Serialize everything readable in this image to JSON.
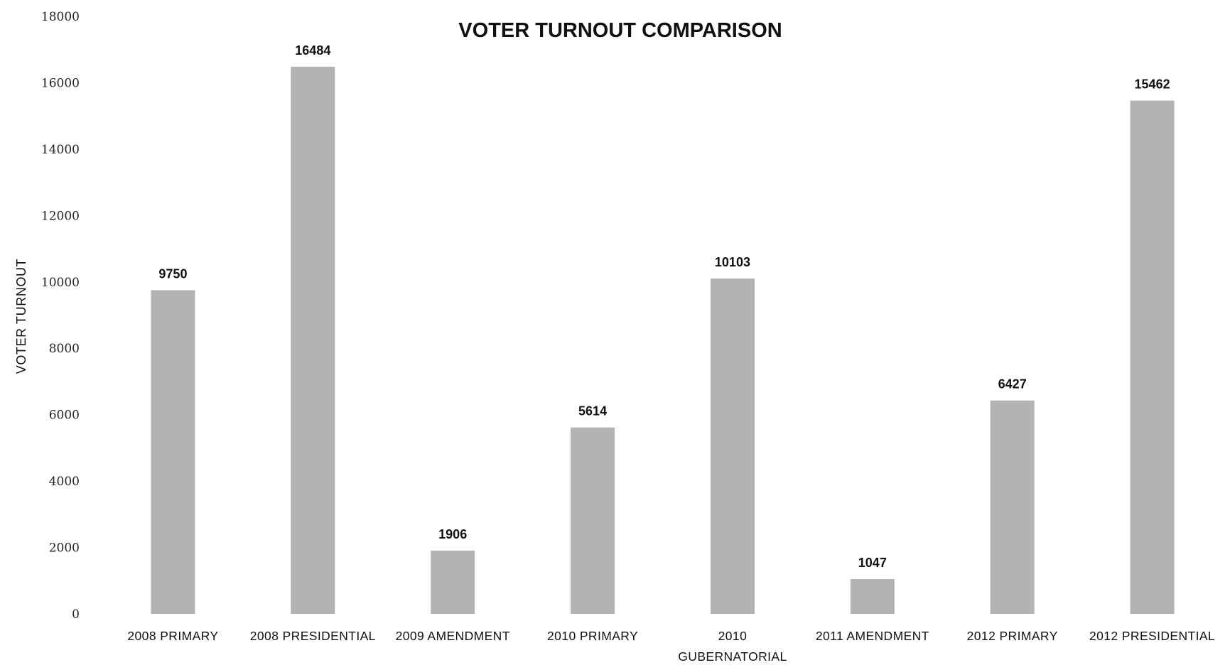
{
  "chart_data": {
    "type": "bar",
    "title": "VOTER TURNOUT COMPARISON",
    "xlabel": "",
    "ylabel": "VOTER TURNOUT",
    "ylim": [
      0,
      18000
    ],
    "yticks": [
      "0",
      "2000",
      "4000",
      "6000",
      "8000",
      "10000",
      "12000",
      "14000",
      "16000",
      "18000"
    ],
    "categories": [
      "2008 PRIMARY",
      "2008 PRESIDENTIAL",
      "2009 AMENDMENT",
      "2010 PRIMARY",
      "2010 GUBERNATORIAL",
      "2011 AMENDMENT",
      "2012 PRIMARY",
      "2012 PRESIDENTIAL"
    ],
    "values": [
      9750,
      16484,
      1906,
      5614,
      10103,
      1047,
      6427,
      15462
    ],
    "data_labels": [
      "9750",
      "16484",
      "1906",
      "5614",
      "10103",
      "1047",
      "6427",
      "15462"
    ],
    "grid": false,
    "legend": "none",
    "bar_color": "#b3b3b3"
  }
}
